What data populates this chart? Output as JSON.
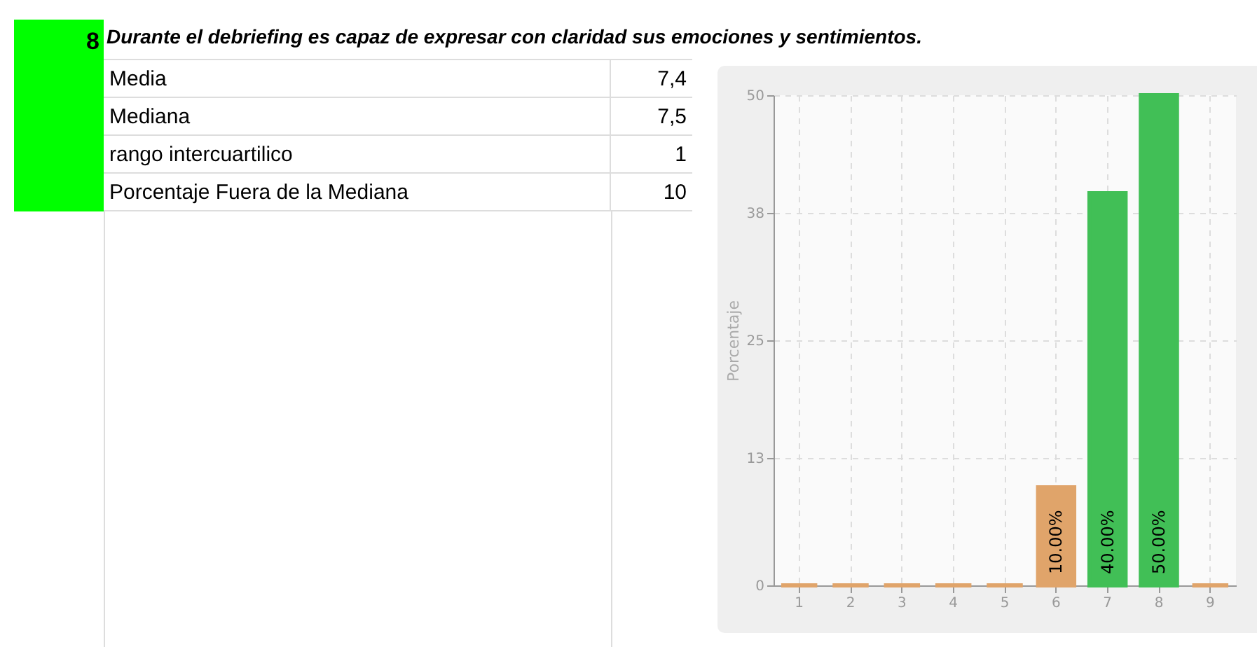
{
  "chart_data": {
    "type": "bar",
    "title": "Durante el debriefing es capaz de expresar con claridad sus emociones y sentimientos.",
    "annotations": [
      "8",
      "Media",
      "7,4",
      "Mediana",
      "7,5",
      "rango intercuartilico",
      "1",
      "Porcentaje Fuera de la Mediana",
      "10"
    ],
    "categories": [
      "1",
      "2",
      "3",
      "4",
      "5",
      "6",
      "7",
      "8",
      "9"
    ],
    "values": [
      0,
      0,
      0,
      0,
      0,
      10,
      40,
      50,
      0
    ],
    "colors": [
      "#e0a46a",
      "#e0a46a",
      "#e0a46a",
      "#e0a46a",
      "#e0a46a",
      "#e0a46a",
      "#41bf56",
      "#41bf56",
      "#e0a46a"
    ],
    "value_labels": [
      null,
      null,
      null,
      null,
      null,
      "10.00%",
      "40.00%",
      "50.00%",
      null
    ],
    "ylabel": "Porcentaje",
    "ylim": [
      0,
      50
    ],
    "yticks": [
      0,
      13,
      25,
      38,
      50
    ],
    "grid": true
  }
}
